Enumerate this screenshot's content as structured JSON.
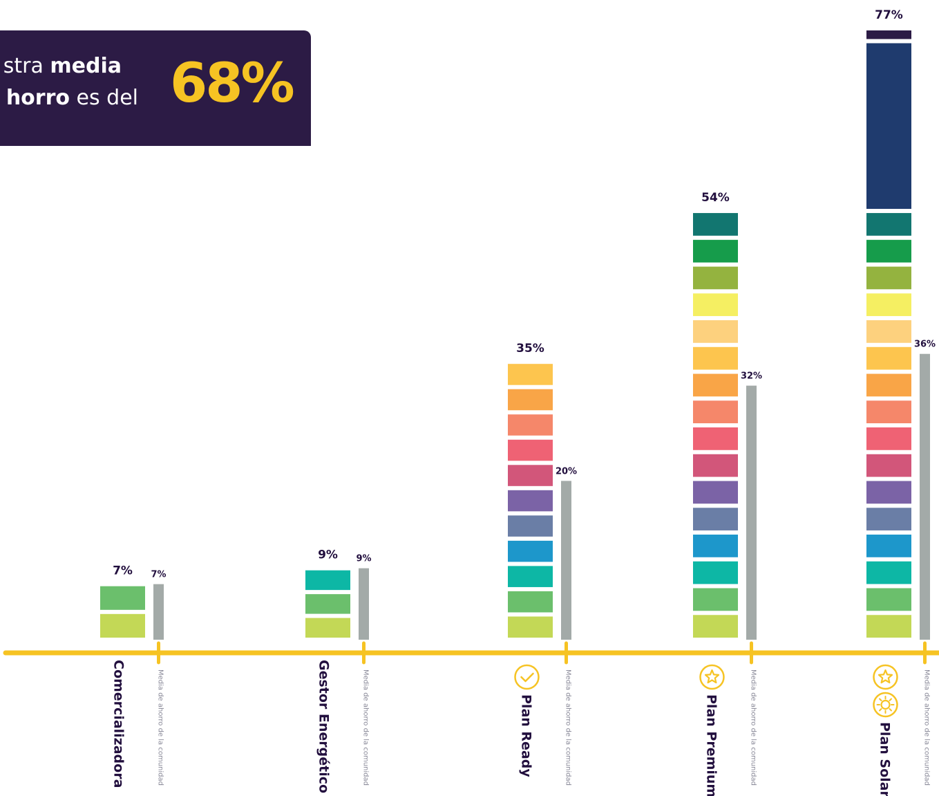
{
  "banner": {
    "line1_regular": "stra ",
    "line1_bold": "media",
    "line2_bold": "horro",
    "line2_regular": " es del",
    "big_value": "68%"
  },
  "chart_data": {
    "type": "bar",
    "categories": [
      "Comercializadora",
      "Gestor Energético",
      "Plan Ready",
      "Plan Premium",
      "Plan Solar"
    ],
    "series": [
      {
        "values": [
          7,
          9,
          35,
          54,
          77
        ]
      },
      {
        "name": "Media de ahorro de la comunidad",
        "values": [
          7,
          9,
          20,
          32,
          36
        ]
      }
    ],
    "value_labels": [
      "7%",
      "9%",
      "35%",
      "54%",
      "77%"
    ],
    "average_labels": [
      "7%",
      "9%",
      "20%",
      "32%",
      "36%"
    ],
    "average_label": "Media de ahorro de la comunidad",
    "category_icons": [
      [],
      [],
      [
        "check-icon"
      ],
      [
        "star-icon"
      ],
      [
        "star-icon",
        "sun-icon"
      ]
    ],
    "ylim": [
      0,
      80
    ],
    "colors": {
      "axis": "#f6c323",
      "average_bar": "#a3aaa8",
      "label_text": "#220f3e",
      "average_text": "#8a8a99",
      "icon": "#f6c323"
    },
    "segment_palette": [
      "#c3d856",
      "#6bbf6c",
      "#0db7a5",
      "#1d97cb",
      "#6a7ea6",
      "#7b63a6",
      "#d2567a",
      "#ef6274",
      "#f5876a",
      "#f9a547",
      "#fdc54e",
      "#fdd17e",
      "#f5ef62",
      "#94b33f",
      "#169c4b",
      "#127670",
      "#1f3b6e",
      "#2c1b45"
    ]
  }
}
